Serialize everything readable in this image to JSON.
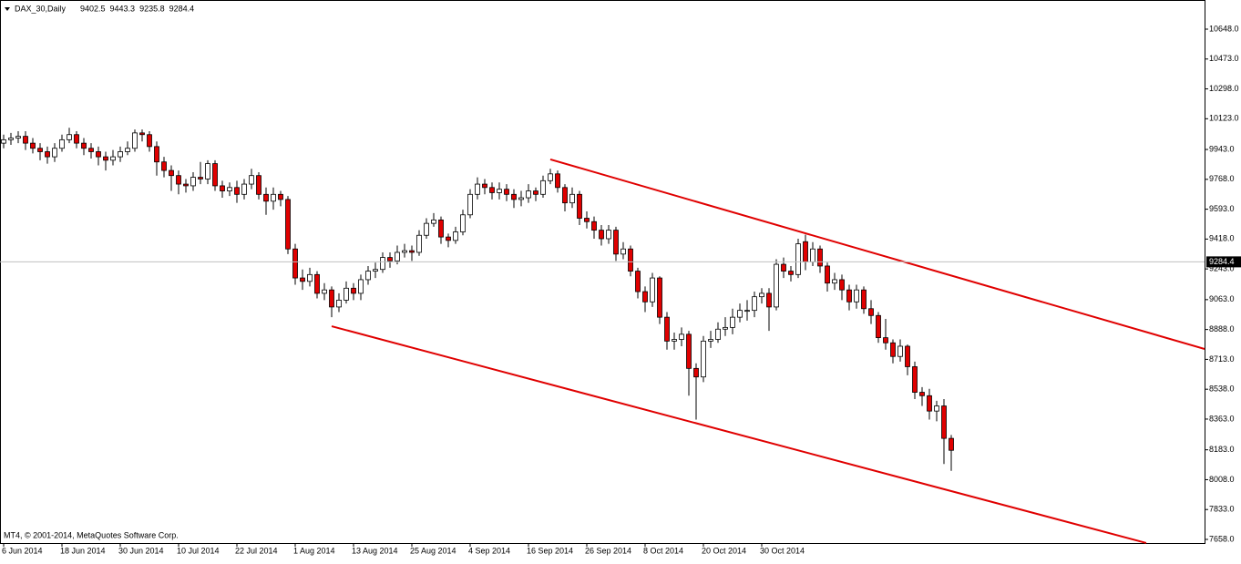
{
  "chart_data": {
    "type": "candlestick",
    "title": "DAX_30,Daily",
    "hover_index": 110,
    "footer": "MT4, © 2001-2014, MetaQuotes Software Corp.",
    "up_color": "#ffffff",
    "down_color": "#e00000",
    "line_color": "#e00000",
    "xlim": [
      -0.5,
      164.75
    ],
    "ylim": [
      7636.6,
      10818.9
    ],
    "xticks": [
      {
        "value": 0,
        "label": "6 Jun 2014"
      },
      {
        "value": 8,
        "label": "18 Jun 2014"
      },
      {
        "value": 16,
        "label": "30 Jun 2014"
      },
      {
        "value": 24,
        "label": "10 Jul 2014"
      },
      {
        "value": 32,
        "label": "22 Jul 2014"
      },
      {
        "value": 40,
        "label": "1 Aug 2014"
      },
      {
        "value": 48,
        "label": "13 Aug 2014"
      },
      {
        "value": 56,
        "label": "25 Aug 2014"
      },
      {
        "value": 64,
        "label": "4 Sep 2014"
      },
      {
        "value": 72,
        "label": "16 Sep 2014"
      },
      {
        "value": 80,
        "label": "26 Sep 2014"
      },
      {
        "value": 88,
        "label": "8 Oct 2014"
      },
      {
        "value": 96,
        "label": "20 Oct 2014"
      },
      {
        "value": 104,
        "label": "30 Oct 2014"
      }
    ],
    "yticks": [
      {
        "value": 10648,
        "label": "10648.0"
      },
      {
        "value": 10473,
        "label": "10473.0"
      },
      {
        "value": 10298,
        "label": "10298.0"
      },
      {
        "value": 10123,
        "label": "10123.0"
      },
      {
        "value": 9943,
        "label": "9943.0"
      },
      {
        "value": 9768,
        "label": "9768.0"
      },
      {
        "value": 9593,
        "label": "9593.0"
      },
      {
        "value": 9418,
        "label": "9418.0"
      },
      {
        "value": 9243,
        "label": "9243.0"
      },
      {
        "value": 9063,
        "label": "9063.0"
      },
      {
        "value": 8888,
        "label": "8888.0"
      },
      {
        "value": 8713,
        "label": "8713.0"
      },
      {
        "value": 8538,
        "label": "8538.0"
      },
      {
        "value": 8363,
        "label": "8363.0"
      },
      {
        "value": 8183,
        "label": "8183.0"
      },
      {
        "value": 8008,
        "label": "8008.0"
      },
      {
        "value": 7833,
        "label": "7833.0"
      },
      {
        "value": 7658,
        "label": "7658.0"
      }
    ],
    "open": [
      9980,
      10000,
      10010,
      10020,
      9980,
      9950,
      9930,
      9900,
      9950,
      10000,
      10030,
      9980,
      9950,
      9930,
      9900,
      9880,
      9900,
      9930,
      9950,
      10040,
      10030,
      9960,
      9870,
      9820,
      9790,
      9740,
      9730,
      9780,
      9770,
      9860,
      9730,
      9700,
      9720,
      9680,
      9740,
      9790,
      9680,
      9640,
      9680,
      9650,
      9360,
      9190,
      9170,
      9210,
      9100,
      9120,
      9020,
      9060,
      9130,
      9100,
      9180,
      9230,
      9240,
      9310,
      9290,
      9340,
      9350,
      9340,
      9440,
      9510,
      9530,
      9430,
      9410,
      9460,
      9560,
      9680,
      9740,
      9720,
      9690,
      9710,
      9680,
      9650,
      9660,
      9700,
      9680,
      9760,
      9800,
      9720,
      9630,
      9680,
      9540,
      9520,
      9470,
      9420,
      9470,
      9330,
      9360,
      9230,
      9110,
      9050,
      9190,
      8960,
      8820,
      8830,
      8860,
      8660,
      8610,
      8820,
      8830,
      8890,
      8900,
      8960,
      9000,
      9000,
      9080,
      9100,
      9020,
      9270,
      9230,
      9210,
      9402.5,
      9284.4,
      9360,
      9260,
      9160,
      9180,
      9120,
      9050,
      9120,
      9010,
      8970,
      8840,
      8810,
      8730,
      8790,
      8670,
      8520,
      8500,
      8410,
      8440,
      8250
    ],
    "high": [
      10030,
      10040,
      10050,
      10050,
      10010,
      9980,
      9960,
      9980,
      10030,
      10070,
      10050,
      10010,
      9980,
      9960,
      9930,
      9940,
      9960,
      9990,
      10060,
      10060,
      10050,
      9990,
      9900,
      9850,
      9820,
      9770,
      9810,
      9870,
      9880,
      9880,
      9760,
      9750,
      9760,
      9770,
      9830,
      9810,
      9720,
      9720,
      9700,
      9670,
      9390,
      9240,
      9250,
      9230,
      9160,
      9140,
      9100,
      9170,
      9160,
      9210,
      9260,
      9280,
      9340,
      9340,
      9380,
      9390,
      9380,
      9470,
      9540,
      9570,
      9550,
      9450,
      9490,
      9590,
      9710,
      9780,
      9770,
      9750,
      9750,
      9740,
      9710,
      9700,
      9740,
      9720,
      9790,
      9830,
      9820,
      9740,
      9720,
      9700,
      9580,
      9550,
      9500,
      9500,
      9490,
      9400,
      9380,
      9250,
      9140,
      9220,
      9200,
      8990,
      8870,
      8900,
      8880,
      8690,
      8850,
      8880,
      8930,
      8960,
      9010,
      9040,
      9060,
      9110,
      9130,
      9130,
      9300,
      9310,
      9260,
      9420,
      9443.3,
      9400,
      9380,
      9280,
      9220,
      9210,
      9150,
      9150,
      9140,
      9060,
      8990,
      8950,
      8830,
      8830,
      8800,
      8700,
      8550,
      8540,
      8470,
      8480,
      8270
    ],
    "low": [
      9950,
      9970,
      9980,
      9940,
      9920,
      9880,
      9860,
      9870,
      9930,
      9980,
      9950,
      9910,
      9890,
      9850,
      9820,
      9850,
      9870,
      9910,
      9930,
      9990,
      9930,
      9790,
      9780,
      9700,
      9680,
      9690,
      9700,
      9740,
      9740,
      9700,
      9660,
      9670,
      9630,
      9650,
      9710,
      9650,
      9560,
      9590,
      9610,
      9330,
      9150,
      9120,
      9140,
      9070,
      9060,
      8960,
      8990,
      9040,
      9060,
      9060,
      9150,
      9190,
      9220,
      9250,
      9270,
      9310,
      9290,
      9320,
      9420,
      9490,
      9390,
      9370,
      9390,
      9440,
      9540,
      9650,
      9680,
      9650,
      9650,
      9640,
      9600,
      9610,
      9630,
      9640,
      9660,
      9740,
      9690,
      9580,
      9600,
      9500,
      9480,
      9420,
      9380,
      9390,
      9290,
      9300,
      9200,
      9070,
      8990,
      9020,
      8920,
      8770,
      8770,
      8790,
      8500,
      8360,
      8580,
      8780,
      8810,
      8850,
      8860,
      8930,
      8940,
      8960,
      9040,
      8880,
      9000,
      9190,
      9170,
      9190,
      9235.8,
      9260,
      9220,
      9110,
      9120,
      9060,
      9000,
      9010,
      8980,
      8920,
      8810,
      8770,
      8690,
      8700,
      8620,
      8480,
      8440,
      8360,
      8350,
      8100,
      8060
    ],
    "close": [
      10000,
      10010,
      10020,
      9980,
      9950,
      9930,
      9900,
      9950,
      10000,
      10030,
      9980,
      9950,
      9930,
      9900,
      9880,
      9900,
      9930,
      9950,
      10040,
      10030,
      9960,
      9870,
      9820,
      9790,
      9740,
      9730,
      9780,
      9770,
      9860,
      9730,
      9700,
      9720,
      9680,
      9740,
      9790,
      9680,
      9640,
      9680,
      9650,
      9360,
      9190,
      9170,
      9210,
      9100,
      9120,
      9020,
      9060,
      9130,
      9100,
      9180,
      9230,
      9240,
      9310,
      9290,
      9340,
      9350,
      9340,
      9440,
      9510,
      9530,
      9430,
      9410,
      9460,
      9560,
      9680,
      9740,
      9720,
      9690,
      9710,
      9680,
      9650,
      9660,
      9700,
      9680,
      9760,
      9800,
      9720,
      9630,
      9680,
      9540,
      9520,
      9470,
      9420,
      9470,
      9330,
      9360,
      9230,
      9110,
      9050,
      9190,
      8960,
      8820,
      8830,
      8860,
      8660,
      8610,
      8820,
      8830,
      8890,
      8900,
      8960,
      9000,
      9000,
      9080,
      9100,
      9020,
      9270,
      9230,
      9210,
      9390,
      9284.4,
      9360,
      9260,
      9160,
      9180,
      9120,
      9050,
      9120,
      9010,
      8970,
      8840,
      8810,
      8730,
      8790,
      8670,
      8520,
      8500,
      8410,
      8440,
      8250,
      8180
    ],
    "trendlines": [
      {
        "x": [
          75,
          164.75
        ],
        "y": [
          9885,
          8774
        ]
      },
      {
        "x": [
          45,
          156.75
        ],
        "y": [
          8907,
          7637
        ]
      }
    ]
  }
}
